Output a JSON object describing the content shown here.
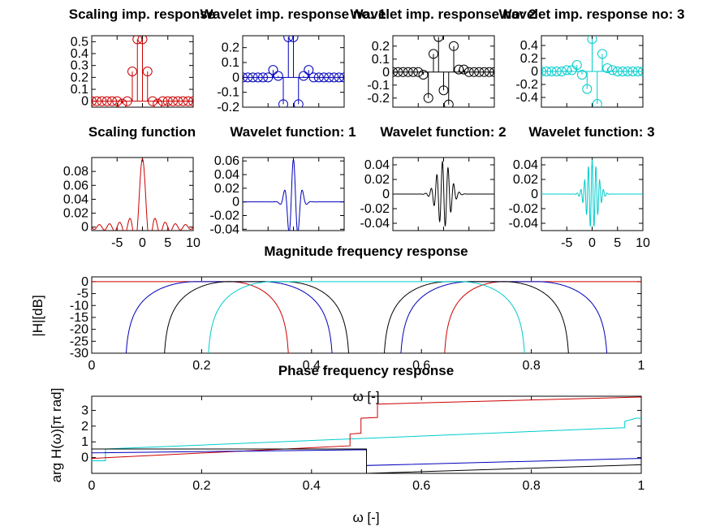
{
  "colors": {
    "scaling": "#cc0000",
    "wavelet1": "#0000bb",
    "wavelet2": "#000000",
    "wavelet3": "#00cccc"
  },
  "chart_data": [
    {
      "type": "stem",
      "id": "scaling-imp",
      "title": "Scaling imp. response",
      "color": "scaling",
      "x": [
        -10,
        -9,
        -8,
        -7,
        -6,
        -5,
        -4,
        -3,
        -2,
        -1,
        0,
        1,
        2,
        3,
        4,
        5,
        6,
        7,
        8,
        9,
        10
      ],
      "values": [
        0,
        0,
        0,
        0,
        0,
        0,
        -0.02,
        0,
        0.25,
        0.52,
        0.52,
        0.25,
        0,
        -0.02,
        0,
        0,
        0,
        0,
        0,
        0,
        0
      ],
      "xlim": [
        -10,
        10
      ],
      "ylim": [
        -0.05,
        0.55
      ],
      "xticks": [
        -10,
        -5,
        0,
        5,
        10
      ],
      "yticks": [
        0,
        0.1,
        0.2,
        0.3,
        0.4,
        0.5
      ],
      "ytick_labels": [
        "0",
        "0.1",
        "0.2",
        "0.3",
        "0.4",
        "0.5"
      ]
    },
    {
      "type": "stem",
      "id": "wavelet-imp-1",
      "title": "Wavelet imp. response no: 1",
      "color": "wavelet1",
      "x": [
        -10,
        -9,
        -8,
        -7,
        -6,
        -5,
        -4,
        -3,
        -2,
        -1,
        0,
        1,
        2,
        3,
        4,
        5,
        6,
        7,
        8,
        9,
        10
      ],
      "values": [
        0,
        0,
        0,
        0,
        0,
        0,
        0.05,
        0.01,
        -0.18,
        0.27,
        0.27,
        -0.18,
        0.01,
        0.05,
        0,
        0,
        0,
        0,
        0,
        0,
        0
      ],
      "xlim": [
        -10,
        10
      ],
      "ylim": [
        -0.2,
        0.28
      ],
      "xticks": [
        -10,
        -5,
        0,
        5,
        10
      ],
      "yticks": [
        -0.2,
        -0.1,
        0,
        0.1,
        0.2
      ],
      "ytick_labels": [
        "-0.2",
        "-0.1",
        "0",
        "0.1",
        "0.2"
      ]
    },
    {
      "type": "stem",
      "id": "wavelet-imp-2",
      "title": "Wavelet imp. response no: 2",
      "color": "wavelet2",
      "x": [
        -10,
        -9,
        -8,
        -7,
        -6,
        -5,
        -4,
        -3,
        -2,
        -1,
        0,
        1,
        2,
        3,
        4,
        5,
        6,
        7,
        8,
        9,
        10
      ],
      "values": [
        0,
        0,
        0,
        0,
        0,
        0,
        -0.02,
        -0.2,
        0.14,
        0.27,
        -0.14,
        -0.25,
        0.2,
        0.02,
        0.02,
        0,
        0,
        0,
        0,
        0,
        0
      ],
      "xlim": [
        -10,
        10
      ],
      "ylim": [
        -0.27,
        0.28
      ],
      "xticks": [
        -10,
        -5,
        0,
        5,
        10
      ],
      "yticks": [
        -0.2,
        -0.1,
        0,
        0.1,
        0.2
      ],
      "ytick_labels": [
        "-0.2",
        "-0.1",
        "0",
        "0.1",
        "0.2"
      ]
    },
    {
      "type": "stem",
      "id": "wavelet-imp-3",
      "title": "Wavelet imp. response no: 3",
      "color": "wavelet3",
      "x": [
        -10,
        -9,
        -8,
        -7,
        -6,
        -5,
        -4,
        -3,
        -2,
        -1,
        0,
        1,
        2,
        3,
        4,
        5,
        6,
        7,
        8,
        9,
        10
      ],
      "values": [
        0,
        0,
        0,
        0,
        0,
        0.02,
        0.02,
        0.1,
        -0.05,
        -0.27,
        0.5,
        -0.5,
        0.27,
        0.05,
        0.02,
        0,
        0,
        0,
        0,
        0,
        0
      ],
      "xlim": [
        -10,
        10
      ],
      "ylim": [
        -0.55,
        0.55
      ],
      "xticks": [
        -10,
        -5,
        0,
        5,
        10
      ],
      "yticks": [
        -0.4,
        -0.2,
        0,
        0.2,
        0.4
      ],
      "ytick_labels": [
        "-0.4",
        "-0.2",
        "0",
        "0.2",
        "0.4"
      ]
    },
    {
      "type": "line",
      "id": "scaling-fn",
      "title": "Scaling function",
      "color": "scaling",
      "curve": {
        "kind": "sinc",
        "amp": 0.098,
        "width": 1.0,
        "freq": 0,
        "phase": 0
      },
      "xlim": [
        -10,
        10
      ],
      "ylim": [
        -0.005,
        0.1
      ],
      "xticks": [
        -5,
        0,
        5,
        10
      ],
      "yticks": [
        0,
        0.02,
        0.04,
        0.06,
        0.08
      ],
      "xtick_labels": [
        "-5",
        "0",
        "5",
        "10"
      ],
      "ytick_labels": [
        "0",
        "0.02",
        "0.04",
        "0.06",
        "0.08"
      ]
    },
    {
      "type": "line",
      "id": "wavelet-fn-1",
      "title": "Wavelet function: 1",
      "color": "wavelet1",
      "curve": {
        "kind": "wave",
        "amp": 0.062,
        "width": 1.1,
        "freq": 0.55,
        "phase": 0
      },
      "xlim": [
        -10,
        10
      ],
      "ylim": [
        -0.042,
        0.065
      ],
      "xticks": [
        -5,
        0,
        5,
        10
      ],
      "yticks": [
        -0.04,
        -0.02,
        0,
        0.02,
        0.04,
        0.06
      ],
      "xtick_labels": [
        "-5",
        "0",
        "5",
        "10"
      ],
      "ytick_labels": [
        "-0.04",
        "-0.02",
        "0",
        "0.02",
        "0.04",
        "0.06"
      ]
    },
    {
      "type": "line",
      "id": "wavelet-fn-2",
      "title": "Wavelet function: 2",
      "color": "wavelet2",
      "curve": {
        "kind": "wave",
        "amp": 0.045,
        "width": 1.3,
        "freq": 0.9,
        "phase": 1.3
      },
      "xlim": [
        -10,
        10
      ],
      "ylim": [
        -0.05,
        0.05
      ],
      "xticks": [
        -5,
        0,
        5,
        10
      ],
      "yticks": [
        -0.04,
        -0.02,
        0,
        0.02,
        0.04
      ],
      "xtick_labels": [
        "-5",
        "0",
        "5",
        "10"
      ],
      "ytick_labels": [
        "-0.04",
        "-0.02",
        "0",
        "0.02",
        "0.04"
      ]
    },
    {
      "type": "line",
      "id": "wavelet-fn-3",
      "title": "Wavelet function: 3",
      "color": "wavelet3",
      "curve": {
        "kind": "wave",
        "amp": 0.047,
        "width": 1.1,
        "freq": 1.35,
        "phase": 0
      },
      "xlim": [
        -10,
        10
      ],
      "ylim": [
        -0.05,
        0.05
      ],
      "xticks": [
        -5,
        0,
        5,
        10
      ],
      "yticks": [
        -0.04,
        -0.02,
        0,
        0.02,
        0.04
      ],
      "xtick_labels": [
        "-5",
        "0",
        "5",
        "10"
      ],
      "ytick_labels": [
        "-0.04",
        "-0.02",
        "0",
        "0.02",
        "0.04"
      ]
    },
    {
      "type": "line",
      "id": "magnitude",
      "title": "Magnitude frequency response",
      "xlabel": "ω [-]",
      "ylabel": "|H|[dB]",
      "xlim": [
        0,
        1
      ],
      "ylim": [
        -30,
        2
      ],
      "xticks": [
        0,
        0.2,
        0.4,
        0.6,
        0.8,
        1
      ],
      "yticks": [
        0,
        -5,
        -10,
        -15,
        -20,
        -25,
        -30
      ],
      "xtick_labels": [
        "0",
        "0.2",
        "0.4",
        "0.6",
        "0.8",
        "1"
      ],
      "ytick_labels": [
        "0",
        "-5",
        "-10",
        "-15",
        "-20",
        "-25",
        "-30"
      ],
      "series": [
        {
          "color": "scaling",
          "bands": [
            {
              "lo": -0.25,
              "hi": 0.25
            },
            {
              "lo": 0.75,
              "hi": 1.25
            }
          ],
          "rolloff": 0.11
        },
        {
          "color": "wavelet1",
          "bands": [
            {
              "lo": 0.19,
              "hi": 0.31
            },
            {
              "lo": 0.69,
              "hi": 0.81
            }
          ],
          "rolloff": 0.13
        },
        {
          "color": "wavelet2",
          "bands": [
            {
              "lo": 0.25,
              "hi": 0.35
            },
            {
              "lo": 0.65,
              "hi": 0.75
            }
          ],
          "rolloff": 0.12
        },
        {
          "color": "wavelet3",
          "bands": [
            {
              "lo": 0.33,
              "hi": 0.67
            }
          ],
          "rolloff": 0.12
        }
      ]
    },
    {
      "type": "line",
      "id": "phase",
      "title": "Phase frequency response",
      "xlabel": "ω [-]",
      "ylabel": "arg H(ω)[π rad]",
      "xlim": [
        0,
        1
      ],
      "ylim": [
        -1,
        3.9
      ],
      "xticks": [
        0,
        0.2,
        0.4,
        0.6,
        0.8,
        1
      ],
      "yticks": [
        0,
        1,
        2,
        3
      ],
      "xtick_labels": [
        "0",
        "0.2",
        "0.4",
        "0.6",
        "0.8",
        "1"
      ],
      "ytick_labels": [
        "0",
        "1",
        "2",
        "3"
      ],
      "series": [
        {
          "color": "wavelet3",
          "points": [
            [
              0,
              -0.2
            ],
            [
              0.025,
              -0.2
            ],
            [
              0.025,
              0.55
            ],
            [
              0.97,
              1.9
            ],
            [
              0.97,
              2.3
            ],
            [
              0.99,
              2.5
            ],
            [
              1,
              2.5
            ]
          ]
        },
        {
          "color": "scaling",
          "points": [
            [
              0,
              -0.05
            ],
            [
              0.47,
              0.75
            ],
            [
              0.47,
              1.5
            ],
            [
              0.49,
              1.55
            ],
            [
              0.49,
              2.5
            ],
            [
              0.52,
              2.55
            ],
            [
              0.52,
              3.4
            ],
            [
              1,
              3.85
            ]
          ]
        },
        {
          "color": "wavelet1",
          "points": [
            [
              0,
              0.3
            ],
            [
              0.5,
              0.5
            ],
            [
              0.5,
              -0.5
            ],
            [
              1,
              -0.05
            ]
          ]
        },
        {
          "color": "wavelet2",
          "points": [
            [
              0,
              0.55
            ],
            [
              0.5,
              0.55
            ],
            [
              0.5,
              -1.0
            ],
            [
              1,
              -0.45
            ]
          ]
        }
      ]
    }
  ]
}
